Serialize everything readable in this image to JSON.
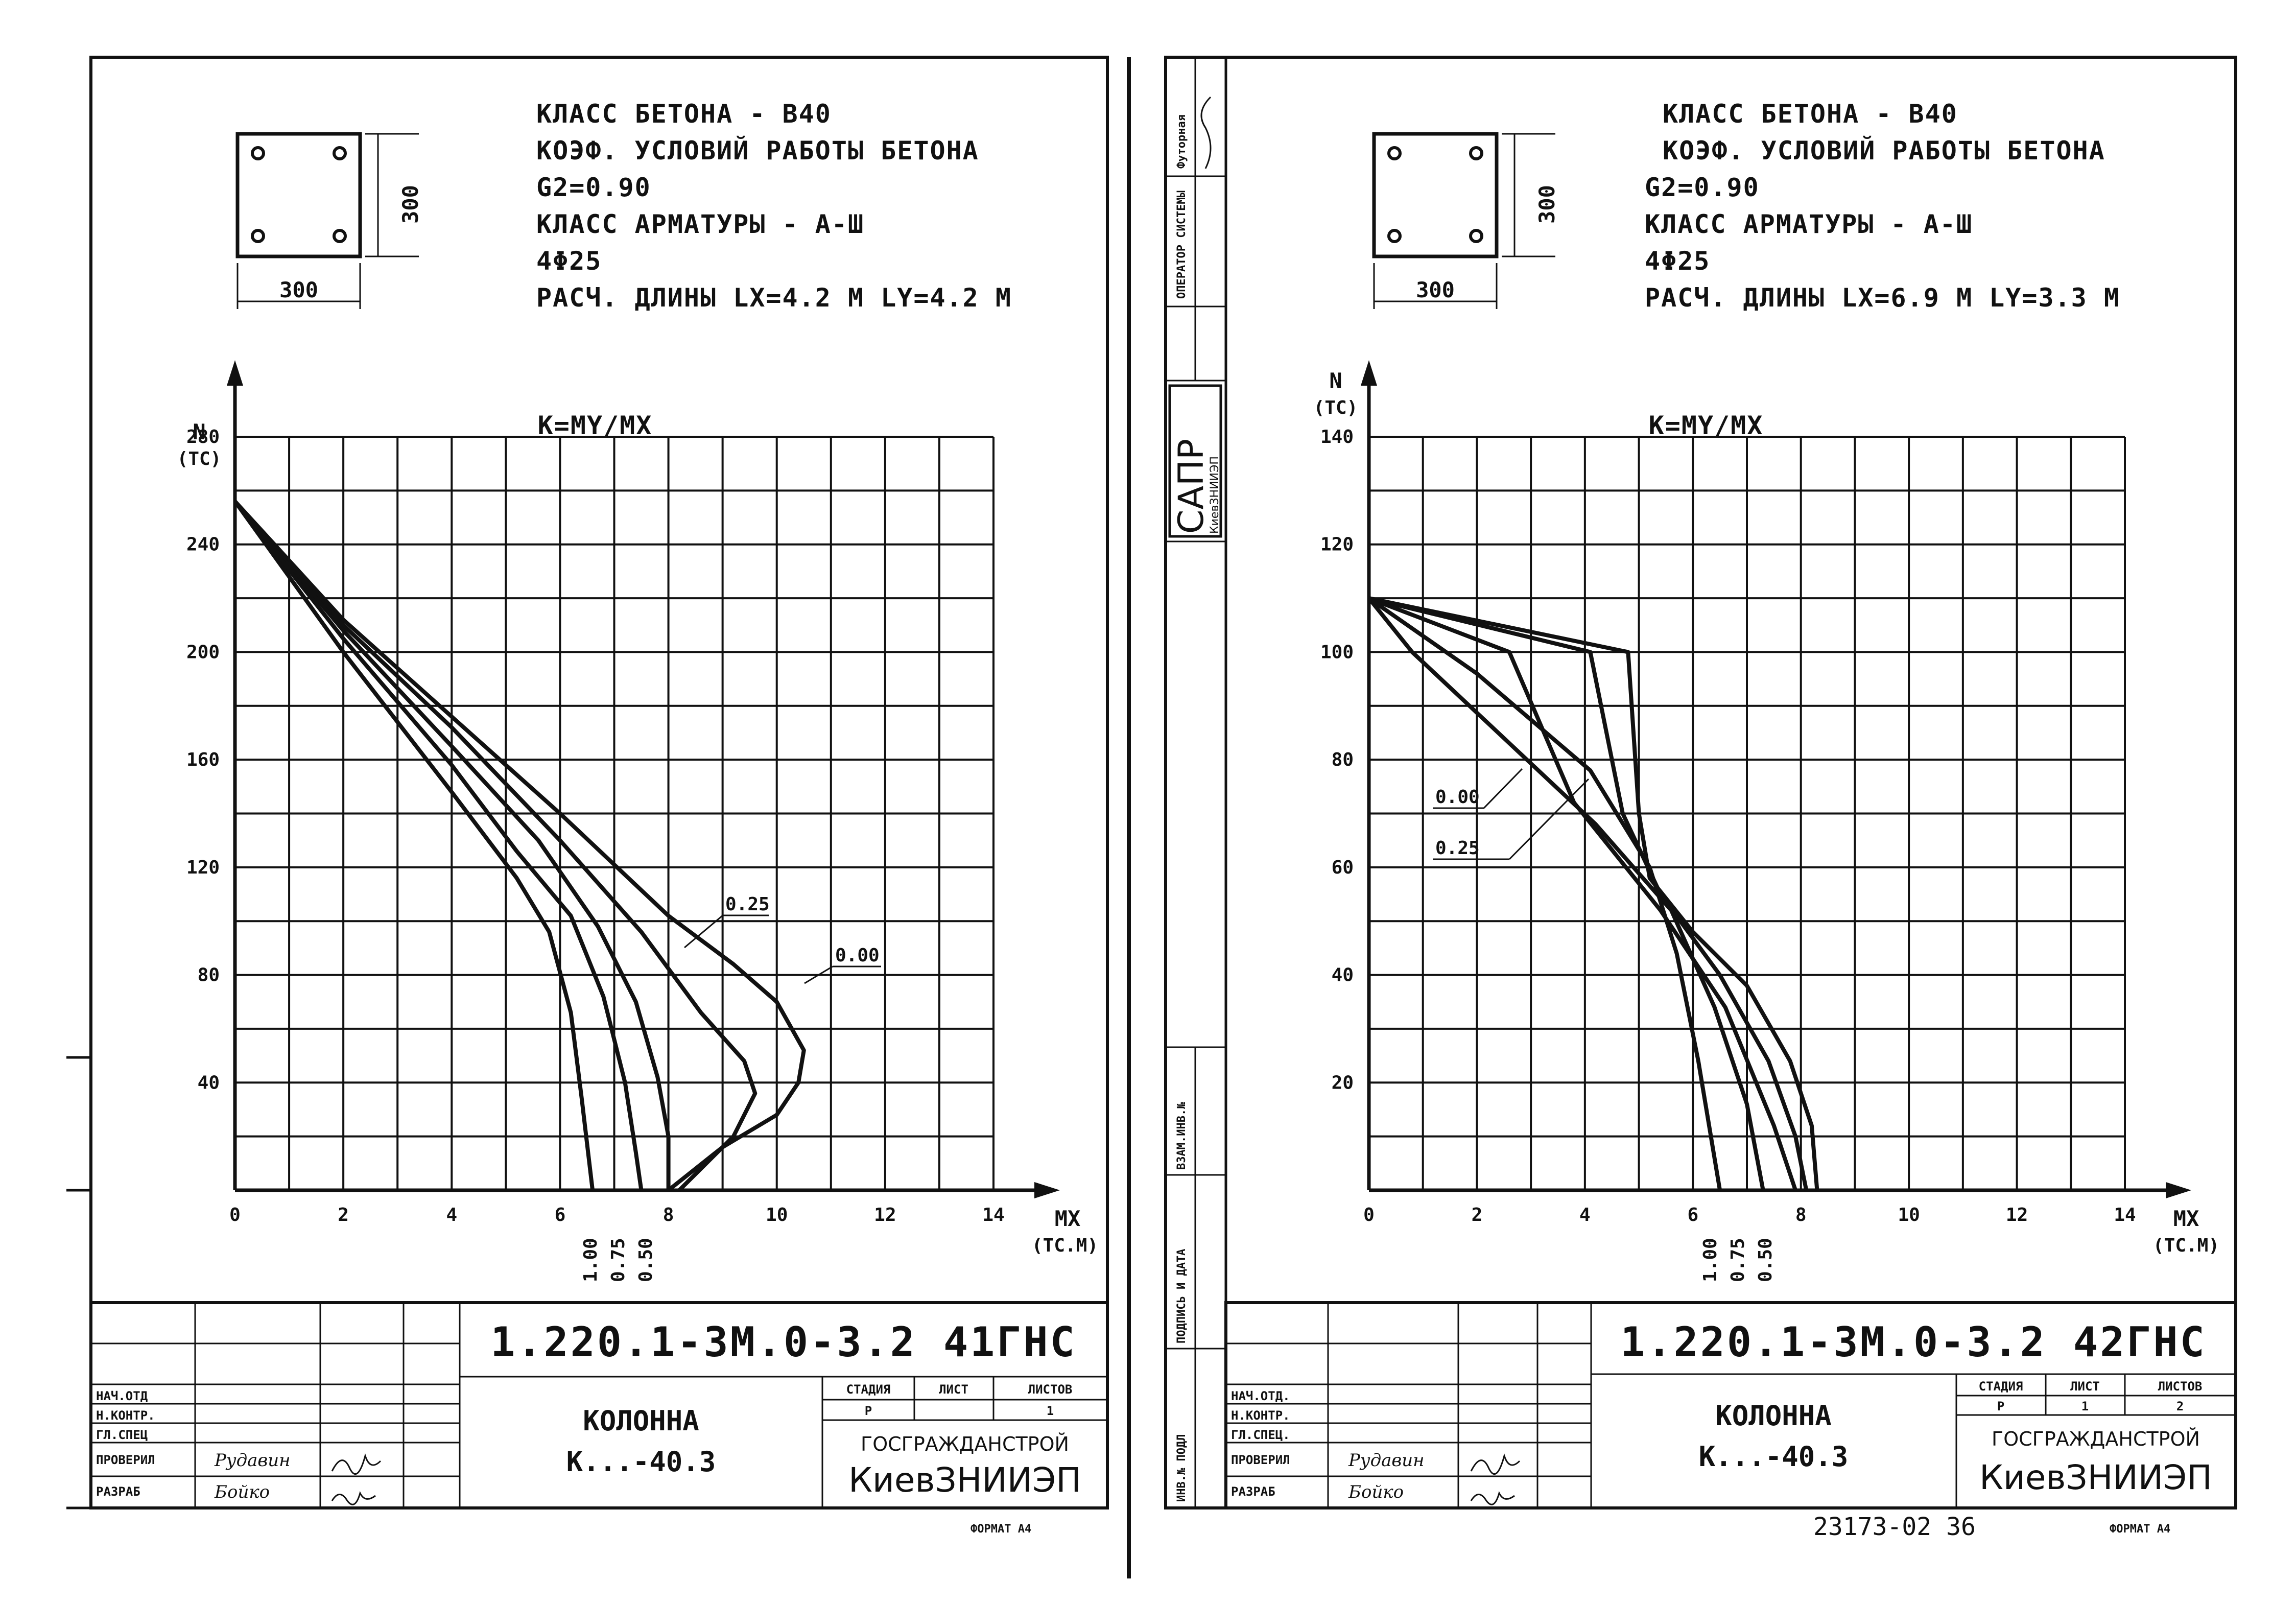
{
  "sheets": [
    {
      "header": {
        "line1": "КЛАСС БЕТОНА - В40",
        "line2": "КОЭФ. УСЛОВИЙ РАБОТЫ БЕТОНА",
        "line3": "G2=0.90",
        "line4": "КЛАСС АРМАТУРЫ - А-Ш",
        "line5": "4Φ25",
        "line6": "РАСЧ. ДЛИНЫ  LX=4.2 M  LY=4.2 M"
      },
      "section": {
        "width_label": "300",
        "height_label": "300"
      },
      "k_label": "K=MY/MX",
      "curve_labels": [
        "0.25",
        "0.00"
      ],
      "bottom_labels": [
        "1.00",
        "0.75",
        "0.50"
      ],
      "title_block": {
        "code": "1.220.1-3М.0-3.2 41ГНС",
        "name1": "КОЛОННА",
        "name2": "К...-40.3",
        "col_stage": "СТАДИЯ",
        "col_sheet": "ЛИСТ",
        "col_sheets": "ЛИСТОВ",
        "stage": "Р",
        "sheet": "",
        "sheets": "1",
        "org1": "ГОСГРАЖДАНСТРОЙ",
        "org2": "КиевЗНИИЭП",
        "roles": [
          "НАЧ.ОТД",
          "Н.КОНТР.",
          "ГЛ.СПЕЦ",
          "ПРОВЕРИЛ",
          "РАЗРАБ"
        ],
        "names": [
          "",
          "",
          "",
          "Рудавин",
          "Бойко"
        ]
      },
      "format": "ФОРМАТ А4"
    },
    {
      "header": {
        "line1": "КЛАСС БЕТОНА - В40",
        "line2": "КОЭФ. УСЛОВИЙ РАБОТЫ БЕТОНА",
        "line3": "G2=0.90",
        "line4": "КЛАСС АРМАТУРЫ - А-Ш",
        "line5": "4Φ25",
        "line6": "РАСЧ. ДЛИНЫ  LX=6.9 M  LY=3.3 M"
      },
      "section": {
        "width_label": "300",
        "height_label": "300"
      },
      "k_label": "K=MY/MX",
      "curve_labels": [
        "0.00",
        "0.25"
      ],
      "bottom_labels": [
        "1.00",
        "0.75",
        "0.50"
      ],
      "title_block": {
        "code": "1.220.1-3М.0-3.2 42ГНС",
        "name1": "КОЛОННА",
        "name2": "К...-40.3",
        "col_stage": "СТАДИЯ",
        "col_sheet": "ЛИСТ",
        "col_sheets": "ЛИСТОВ",
        "stage": "Р",
        "sheet": "1",
        "sheets": "2",
        "org1": "ГОСГРАЖДАНСТРОЙ",
        "org2": "КиевЗНИИЭП",
        "roles": [
          "НАЧ.ОТД.",
          "Н.КОНТР.",
          "ГЛ.СПЕЦ.",
          "ПРОВЕРИЛ",
          "РАЗРАБ"
        ],
        "names": [
          "",
          "",
          "",
          "Рудавин",
          "Бойко"
        ]
      },
      "format": "ФОРМАТ А4",
      "doc_number": "23173-02  36"
    }
  ],
  "side_stamp": {
    "cell1": "Футорная",
    "cell2": "ОПЕРАТОР СИСТЕМЫ",
    "sapr": "САПР",
    "sapr_sub": "КиевЗНИИЭП",
    "vzam": "ВЗАМ.ИНВ.№",
    "podpis": "ПОДПИСЬ И ДАТА",
    "inv": "ИНВ.№ ПОДЛ"
  },
  "chart_data": [
    {
      "type": "line",
      "xlabel": "MX",
      "xunit": "(ТС.М)",
      "ylabel": "N",
      "yunit": "(ТС)",
      "xlim": [
        0,
        14
      ],
      "ylim": [
        0,
        280
      ],
      "xticks": [
        0,
        2,
        4,
        6,
        8,
        10,
        12,
        14
      ],
      "yticks": [
        40,
        80,
        120,
        160,
        200,
        240,
        280
      ],
      "series": [
        {
          "name": "0.00",
          "points": [
            [
              0,
              256
            ],
            [
              2,
              212
            ],
            [
              4,
              176
            ],
            [
              6,
              140
            ],
            [
              8,
              102
            ],
            [
              9.2,
              84
            ],
            [
              10,
              70
            ],
            [
              10.5,
              52
            ],
            [
              10.4,
              40
            ],
            [
              10,
              28
            ],
            [
              9,
              16
            ],
            [
              8,
              0
            ]
          ]
        },
        {
          "name": "0.25",
          "points": [
            [
              0,
              256
            ],
            [
              2,
              210
            ],
            [
              4,
              172
            ],
            [
              6,
              130
            ],
            [
              7.5,
              96
            ],
            [
              8.6,
              66
            ],
            [
              9.4,
              48
            ],
            [
              9.6,
              36
            ],
            [
              9.2,
              20
            ],
            [
              8.6,
              8
            ],
            [
              8.2,
              0
            ]
          ]
        },
        {
          "name": "0.50",
          "points": [
            [
              0,
              256
            ],
            [
              2,
              208
            ],
            [
              4,
              165
            ],
            [
              5.6,
              130
            ],
            [
              6.7,
              98
            ],
            [
              7.4,
              70
            ],
            [
              7.8,
              42
            ],
            [
              8,
              20
            ],
            [
              8,
              0
            ]
          ]
        },
        {
          "name": "0.75",
          "points": [
            [
              0,
              256
            ],
            [
              2,
              205
            ],
            [
              4,
              158
            ],
            [
              5.2,
              126
            ],
            [
              6.2,
              102
            ],
            [
              6.8,
              72
            ],
            [
              7.2,
              40
            ],
            [
              7.4,
              14
            ],
            [
              7.5,
              0
            ]
          ]
        },
        {
          "name": "1.00",
          "points": [
            [
              0,
              256
            ],
            [
              2,
              200
            ],
            [
              4,
              148
            ],
            [
              5.2,
              116
            ],
            [
              5.8,
              96
            ],
            [
              6.2,
              66
            ],
            [
              6.4,
              34
            ],
            [
              6.6,
              0
            ]
          ]
        }
      ]
    },
    {
      "type": "line",
      "xlabel": "MX",
      "xunit": "(ТС.М)",
      "ylabel": "N",
      "yunit": "(ТС)",
      "xlim": [
        0,
        14
      ],
      "ylim": [
        0,
        140
      ],
      "xticks": [
        0,
        2,
        4,
        6,
        8,
        10,
        12,
        14
      ],
      "yticks": [
        20,
        40,
        60,
        80,
        100,
        120,
        140
      ],
      "series": [
        {
          "name": "0.00",
          "points": [
            [
              0,
              110
            ],
            [
              4.8,
              100
            ],
            [
              5,
              70
            ],
            [
              5.2,
              58
            ],
            [
              6,
              48
            ],
            [
              7,
              38
            ],
            [
              7.8,
              24
            ],
            [
              8.2,
              12
            ],
            [
              8.3,
              0
            ]
          ]
        },
        {
          "name": "0.25",
          "points": [
            [
              0,
              110
            ],
            [
              4.1,
              100
            ],
            [
              4.7,
              70
            ],
            [
              5.4,
              55
            ],
            [
              6.5,
              40
            ],
            [
              7.4,
              24
            ],
            [
              7.9,
              10
            ],
            [
              8.1,
              0
            ]
          ]
        },
        {
          "name": "0.50",
          "points": [
            [
              0,
              110
            ],
            [
              2.6,
              100
            ],
            [
              3.8,
              72
            ],
            [
              5.4,
              52
            ],
            [
              6.6,
              34
            ],
            [
              7.5,
              12
            ],
            [
              7.9,
              0
            ]
          ]
        },
        {
          "name": "0.75",
          "points": [
            [
              0,
              110
            ],
            [
              0.8,
              100
            ],
            [
              2.5,
              84
            ],
            [
              4.2,
              68
            ],
            [
              5.6,
              52
            ],
            [
              6.4,
              34
            ],
            [
              7,
              16
            ],
            [
              7.3,
              0
            ]
          ]
        },
        {
          "name": "1.00",
          "points": [
            [
              0,
              110
            ],
            [
              2,
              96
            ],
            [
              4.1,
              78
            ],
            [
              5.2,
              60
            ],
            [
              5.7,
              44
            ],
            [
              6.1,
              24
            ],
            [
              6.5,
              0
            ]
          ]
        }
      ]
    }
  ]
}
